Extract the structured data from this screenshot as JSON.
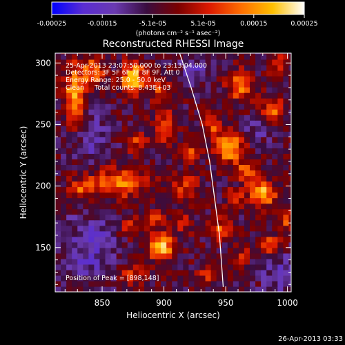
{
  "colorbar": {
    "ticks": [
      "-0.00025",
      "-0.00015",
      "-5.1e-05",
      "5.1e-05",
      "0.00015",
      "0.00025"
    ],
    "units_label": "(photons cm⁻² s⁻¹ asec⁻²)",
    "colors": [
      "#0000ff",
      "#5a2dd2",
      "#6a3ab0",
      "#3a0d40",
      "#7a0000",
      "#dd1a00",
      "#ff6e00",
      "#ffc000",
      "#ffffff"
    ]
  },
  "chart_data": {
    "type": "heatmap",
    "title": "Reconstructed RHESSI Image",
    "xlabel": "Heliocentric X (arcsec)",
    "ylabel": "Heliocentric Y (arcsec)",
    "xlim": [
      812,
      1003
    ],
    "ylim": [
      114,
      308
    ],
    "xticks": [
      850,
      900,
      950,
      1000
    ],
    "yticks": [
      150,
      200,
      250,
      300
    ],
    "colorbar_range": [
      -0.00025,
      0.00025
    ],
    "annotations": [
      "25-Apr-2013 23:07:50.000 to 23:13:04.000",
      "Detectors: 3F 5F 6F 7F 8F 9F, Att 0",
      "Energy Range: 25.0 - 50.0 keV",
      "Clean     Total counts: 8.43E+03"
    ],
    "peak_label": "Position of Peak = [898,148]",
    "peak_position": [
      898,
      148
    ],
    "limb_curve": [
      [
        912,
        310
      ],
      [
        922,
        280
      ],
      [
        931,
        250
      ],
      [
        937,
        220
      ],
      [
        941,
        190
      ],
      [
        945,
        160
      ],
      [
        948,
        118
      ]
    ],
    "sources": [
      {
        "x": 828,
        "y": 272,
        "amp": 0.00022,
        "sx": 6,
        "sy": 18
      },
      {
        "x": 843,
        "y": 293,
        "amp": 0.00018,
        "sx": 6,
        "sy": 8
      },
      {
        "x": 875,
        "y": 288,
        "amp": 0.00024,
        "sx": 7,
        "sy": 9
      },
      {
        "x": 898,
        "y": 278,
        "amp": 0.00012,
        "sx": 6,
        "sy": 7
      },
      {
        "x": 863,
        "y": 203,
        "amp": 0.00018,
        "sx": 16,
        "sy": 8
      },
      {
        "x": 833,
        "y": 198,
        "amp": 0.00013,
        "sx": 7,
        "sy": 6
      },
      {
        "x": 878,
        "y": 236,
        "amp": 0.00011,
        "sx": 6,
        "sy": 6
      },
      {
        "x": 901,
        "y": 248,
        "amp": 0.00016,
        "sx": 6,
        "sy": 10
      },
      {
        "x": 918,
        "y": 200,
        "amp": 0.00012,
        "sx": 7,
        "sy": 7
      },
      {
        "x": 923,
        "y": 228,
        "amp": 0.00011,
        "sx": 5,
        "sy": 6
      },
      {
        "x": 898,
        "y": 151,
        "amp": 0.00026,
        "sx": 7,
        "sy": 7
      },
      {
        "x": 893,
        "y": 174,
        "amp": 0.00013,
        "sx": 5,
        "sy": 5
      },
      {
        "x": 872,
        "y": 168,
        "amp": 0.00011,
        "sx": 6,
        "sy": 6
      },
      {
        "x": 876,
        "y": 128,
        "amp": 0.00012,
        "sx": 8,
        "sy": 5
      },
      {
        "x": 953,
        "y": 232,
        "amp": 0.00022,
        "sx": 8,
        "sy": 9
      },
      {
        "x": 938,
        "y": 249,
        "amp": 0.00012,
        "sx": 5,
        "sy": 6
      },
      {
        "x": 968,
        "y": 212,
        "amp": 0.00016,
        "sx": 6,
        "sy": 6
      },
      {
        "x": 980,
        "y": 194,
        "amp": 0.00024,
        "sx": 7,
        "sy": 7
      },
      {
        "x": 957,
        "y": 190,
        "amp": 0.00013,
        "sx": 5,
        "sy": 5
      },
      {
        "x": 962,
        "y": 282,
        "amp": 0.0002,
        "sx": 7,
        "sy": 8
      },
      {
        "x": 988,
        "y": 262,
        "amp": 0.00015,
        "sx": 6,
        "sy": 7
      },
      {
        "x": 993,
        "y": 298,
        "amp": 0.00012,
        "sx": 5,
        "sy": 6
      },
      {
        "x": 945,
        "y": 165,
        "amp": 0.00013,
        "sx": 6,
        "sy": 6
      },
      {
        "x": 985,
        "y": 152,
        "amp": 0.00016,
        "sx": 6,
        "sy": 6
      },
      {
        "x": 963,
        "y": 143,
        "amp": 0.0001,
        "sx": 5,
        "sy": 5
      },
      {
        "x": 936,
        "y": 128,
        "amp": 0.00011,
        "sx": 6,
        "sy": 5
      },
      {
        "x": 1000,
        "y": 172,
        "amp": 0.00012,
        "sx": 4,
        "sy": 6
      },
      {
        "x": 916,
        "y": 170,
        "amp": 0.0001,
        "sx": 5,
        "sy": 6
      },
      {
        "x": 840,
        "y": 150,
        "amp": -0.0001,
        "sx": 15,
        "sy": 20
      },
      {
        "x": 840,
        "y": 240,
        "amp": -8e-05,
        "sx": 12,
        "sy": 15
      },
      {
        "x": 995,
        "y": 130,
        "amp": -8e-05,
        "sx": 12,
        "sy": 12
      },
      {
        "x": 925,
        "y": 295,
        "amp": -8e-05,
        "sx": 8,
        "sy": 8
      },
      {
        "x": 975,
        "y": 245,
        "amp": -6e-05,
        "sx": 8,
        "sy": 8
      }
    ]
  },
  "footer": {
    "timestamp": "26-Apr-2013 03:33"
  }
}
